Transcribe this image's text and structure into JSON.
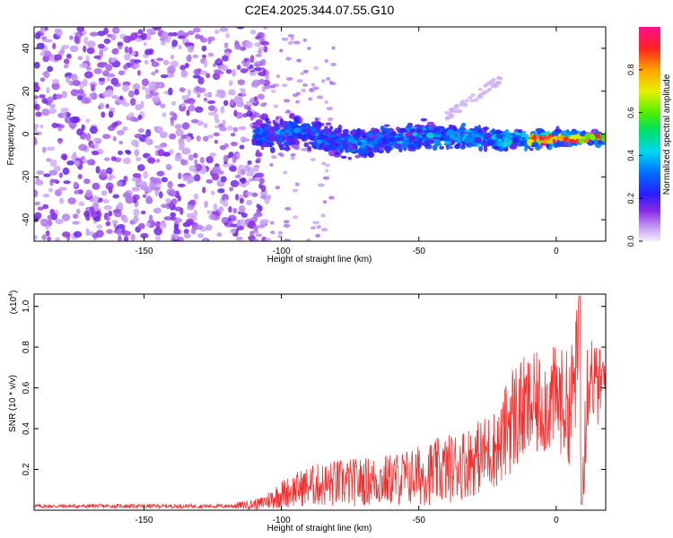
{
  "title": "C2E4.2025.344.07.55.G10",
  "colors": {
    "snr_line": "#ee3333",
    "axis": "#000000",
    "background": "#ffffff"
  },
  "chart_data": [
    {
      "type": "heatmap",
      "title": "C2E4.2025.344.07.55.G10",
      "xlabel": "Height of straight line (km)",
      "ylabel": "Frequency (Hz)",
      "xlim": [
        -190,
        18
      ],
      "ylim": [
        -50,
        50
      ],
      "xticks": [
        -150,
        -100,
        -50,
        0
      ],
      "xtick_labels": [
        "-150",
        "-100",
        "-50",
        "0"
      ],
      "yticks": [
        -40,
        -20,
        0,
        20,
        40
      ],
      "ytick_labels": [
        "-40",
        "-20",
        "0",
        "20",
        "40"
      ],
      "colorbar": {
        "label": "Normalized spectral amplitude",
        "range": [
          0,
          1
        ],
        "ticks": [
          0.0,
          0.2,
          0.4,
          0.6,
          0.8
        ],
        "tick_labels": [
          "0.0",
          "0.2",
          "0.4",
          "0.6",
          "0.8"
        ],
        "colormap": "rainbow"
      },
      "features": {
        "noise_region_x": [
          -190,
          -105
        ],
        "signal_band_x": [
          -110,
          18
        ],
        "signal_center_freq_hz": -2,
        "signal_halfwidth_hz": 6,
        "peak_amplitude": 1.0
      }
    },
    {
      "type": "line",
      "xlabel": "Height of straight line (km)",
      "ylabel": "SNR (10 * v/v)",
      "scale_label": "(x10",
      "scale_exponent": "4",
      "xlim": [
        -190,
        18
      ],
      "ylim": [
        0,
        1.06
      ],
      "xticks": [
        -150,
        -100,
        -50,
        0
      ],
      "xtick_labels": [
        "-150",
        "-100",
        "-50",
        "0"
      ],
      "yticks": [
        0.2,
        0.4,
        0.6,
        0.8,
        1.0
      ],
      "ytick_labels": [
        "0.2",
        "0.4",
        "0.6",
        "0.8",
        "1.0"
      ],
      "series": [
        {
          "name": "SNR",
          "envelope": {
            "x": [
              -190,
              -120,
              -108,
              -100,
              -90,
              -80,
              -70,
              -60,
              -50,
              -40,
              -30,
              -20,
              -17,
              -10,
              0,
              5,
              8,
              10,
              12,
              15,
              18
            ],
            "mean": [
              0.02,
              0.02,
              0.03,
              0.08,
              0.12,
              0.13,
              0.14,
              0.15,
              0.17,
              0.2,
              0.25,
              0.32,
              0.45,
              0.5,
              0.55,
              0.5,
              0.75,
              0.45,
              0.7,
              0.6,
              0.65
            ],
            "amp": [
              0.01,
              0.01,
              0.03,
              0.07,
              0.1,
              0.12,
              0.12,
              0.13,
              0.15,
              0.17,
              0.18,
              0.2,
              0.28,
              0.26,
              0.26,
              0.28,
              0.3,
              0.4,
              0.25,
              0.2,
              0.15
            ]
          }
        }
      ]
    }
  ]
}
